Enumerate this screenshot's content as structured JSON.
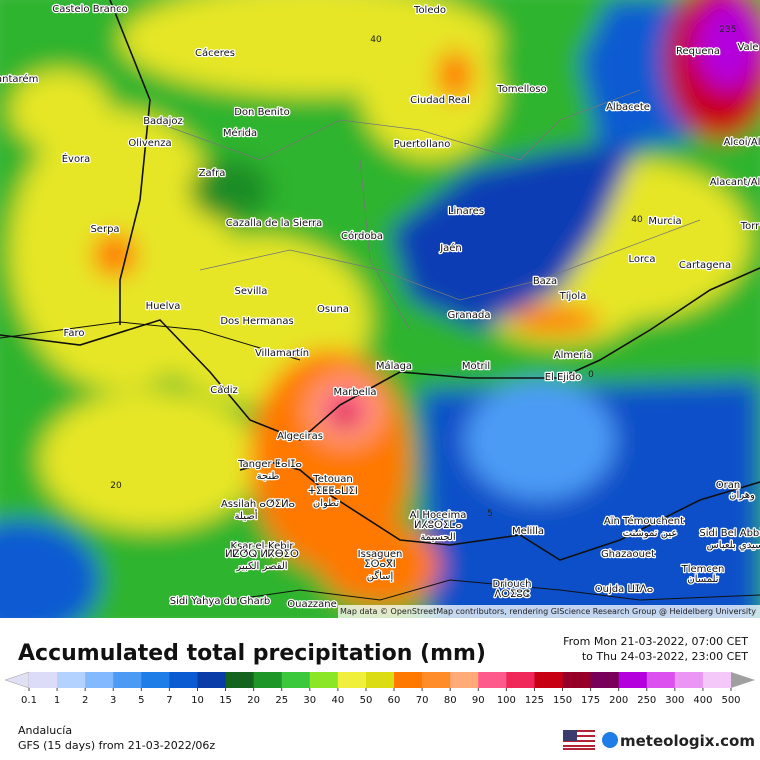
{
  "map": {
    "labels": [
      "Castelo Branco",
      "Toledo",
      "40",
      "235",
      "Vale",
      "Cáceres",
      "Requena",
      "Santarém",
      "Ciudad Real",
      "Tomelloso",
      "Badajoz",
      "Don Benito",
      "Albacete",
      "Évora",
      "Olivenza",
      "Mérida",
      "Puertollano",
      "Alcoi/Al",
      "Zafra",
      "Alacant/Al",
      "Serpa",
      "Cazalla de la Sierra",
      "Linares",
      "Murcia",
      "40",
      "Torr",
      "Córdoba",
      "Jaén",
      "Lorca",
      "Cartagena",
      "Sevilla",
      "Huelva",
      "Osuna",
      "Baza",
      "Tíjola",
      "Granada",
      "Dos Hermanas",
      "Faro",
      "Villamartín",
      "Málaga",
      "Motril",
      "Almería",
      "El Ejido",
      "0",
      "Cádiz",
      "Marbella",
      "Algeciras",
      "Tanger ⵟⴰⵏⵊⴰ",
      "طنجة",
      "Tetouan",
      "ⵜⵉⵟⵟⴰⵡⵉⵏ",
      "تطوان",
      "20",
      "Assilah ⴰⵚⵉⵍⴰ",
      "أصيلة",
      "Al Hoceima",
      "ⵍⵃⵓⵙⵉⵎⴰ",
      "الحسيمة",
      "5",
      "Melilla",
      "Oran",
      "وهران",
      "Aïn Témouchent",
      "عين تموشنت",
      "Sidi Bel Abbès",
      "سيدي بلعباس",
      "Ksar-el-Kebir",
      "ⵍⵇⵚⵕ ⵍⴽⴱⵉⵔ",
      "القصر الكبير",
      "Issaguen",
      "ⵉⵙⴰⴳⵏ",
      "إساگن",
      "Ghazaouet",
      "Tlemcen",
      "تلمسان",
      "Driouch",
      "ⴷⵔⵉⵓⵛ",
      "Oujda ⵡⵊⴷⴰ",
      "Sidi Yahya du Gharb",
      "Ouazzane"
    ],
    "attribution": "Map data © OpenStreetMap contributors, rendering GIScience Research Group @ Heidelberg University"
  },
  "header": {
    "title": "Accumulated total precipitation (mm)",
    "from": "From Mon 21-03-2022, 07:00 CET",
    "to": "to Thu 24-03-2022, 23:00 CET"
  },
  "legend": {
    "values": [
      0.1,
      1,
      2,
      3,
      5,
      7,
      10,
      15,
      20,
      25,
      30,
      40,
      50,
      60,
      70,
      80,
      90,
      100,
      125,
      150,
      175,
      200,
      250,
      300,
      400,
      500
    ],
    "colors": [
      "#e0e0f4",
      "#dcdcf8",
      "#b4d2ff",
      "#82b9ff",
      "#4b9bf5",
      "#1e7de6",
      "#0a5ad2",
      "#0a3ca8",
      "#14641e",
      "#1e9628",
      "#3cc83c",
      "#8ce628",
      "#f0f03c",
      "#dcdc14",
      "#ff7800",
      "#ff8c28",
      "#ffaa78",
      "#ff5a8c",
      "#f0285a",
      "#c80014",
      "#960028",
      "#78005a",
      "#b400dc",
      "#dc50f0",
      "#eb96f5",
      "#f5c8fa",
      "#f5f0fa",
      "#c8c8c8",
      "#a0a0a0"
    ]
  },
  "footer": {
    "region": "Andalucía",
    "model": "GFS (15 days) from 21-03-2022/06z",
    "brand": "meteologix.com"
  }
}
